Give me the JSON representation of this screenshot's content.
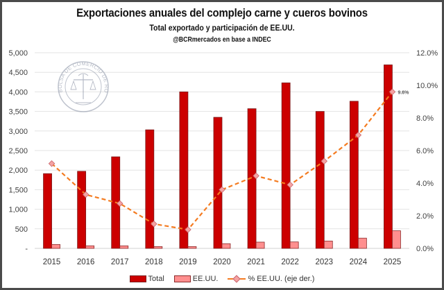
{
  "header": {
    "title": "Exportaciones anuales del complejo carne y cueros bovinos",
    "subtitle": "Total exportado y participación de EE.UU.",
    "source": "@BCRmercados en base a INDEC"
  },
  "logo": {
    "name": "Bolsa de Comercio de Rosario seal",
    "text": "BOLSA DE COMERCIO DE ROSARIO"
  },
  "colors": {
    "total": "#cc0000",
    "total_border": "#7a1a1a",
    "eeuu": "#ff8f8f",
    "eeuu_border": "#8b2a2a",
    "pct_line": "#f47b20",
    "pct_marker": "#f4a3a3",
    "pct_marker_border": "#c9646b",
    "grid": "#e3e3e3"
  },
  "legend": {
    "total": "Total",
    "eeuu": "EE.UU.",
    "pct": "% EE.UU. (eje der.)"
  },
  "chart_data": {
    "type": "bar",
    "title": "Exportaciones anuales del complejo carne y cueros bovinos",
    "subtitle": "Total exportado y participación de EE.UU.",
    "xlabel": "",
    "ylabel": "",
    "categories": [
      "2015",
      "2016",
      "2017",
      "2018",
      "2019",
      "2020",
      "2021",
      "2022",
      "2023",
      "2024",
      "2025"
    ],
    "series": [
      {
        "name": "Total",
        "type": "bar",
        "axis": "left",
        "values": [
          1910,
          1970,
          2340,
          3030,
          4000,
          3350,
          3570,
          4230,
          3500,
          3760,
          4690
        ]
      },
      {
        "name": "EE.UU.",
        "type": "bar",
        "axis": "left",
        "values": [
          100,
          66,
          65,
          46,
          46,
          120,
          160,
          165,
          188,
          262,
          450
        ]
      },
      {
        "name": "% EE.UU. (eje der.)",
        "type": "line",
        "axis": "right",
        "style": "dashed",
        "values": [
          5.2,
          3.3,
          2.75,
          1.5,
          1.15,
          3.6,
          4.45,
          3.9,
          5.35,
          6.95,
          9.6
        ]
      }
    ],
    "ylim": [
      0,
      5000
    ],
    "yticks": [
      "-",
      "500",
      "1,000",
      "1,500",
      "2,000",
      "2,500",
      "3,000",
      "3,500",
      "4,000",
      "4,500",
      "5,000"
    ],
    "y2lim": [
      0,
      12
    ],
    "y2ticks": [
      "0.0%",
      "2.0%",
      "4.0%",
      "6.0%",
      "8.0%",
      "10.0%",
      "12.0%"
    ],
    "annotations": [
      {
        "series": "% EE.UU. (eje der.)",
        "category": "2025",
        "text": "9.6%"
      }
    ],
    "grid": true,
    "legend_position": "bottom"
  }
}
